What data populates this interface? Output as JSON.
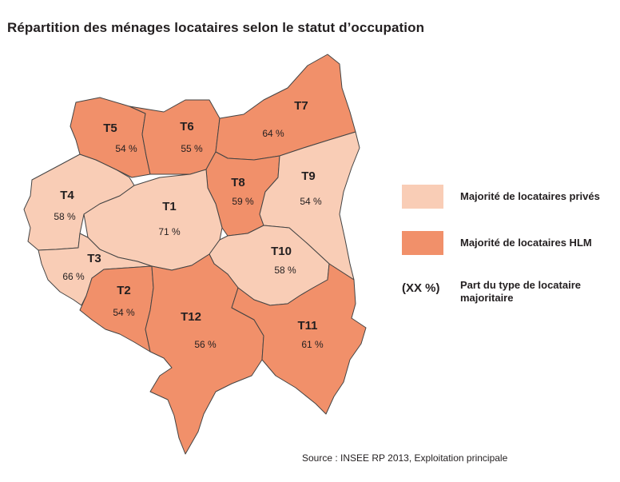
{
  "title": "Répartition des ménages locataires selon le statut d’occupation",
  "colors": {
    "prive": "#f9cdb6",
    "hlm": "#f1906a",
    "outline": "#444444"
  },
  "regions": {
    "T1": {
      "name": "T1",
      "pct": "71 %",
      "category": "prive"
    },
    "T2": {
      "name": "T2",
      "pct": "54 %",
      "category": "hlm"
    },
    "T3": {
      "name": "T3",
      "pct": "66 %",
      "category": "prive"
    },
    "T4": {
      "name": "T4",
      "pct": "58 %",
      "category": "prive"
    },
    "T5": {
      "name": "T5",
      "pct": "54 %",
      "category": "hlm"
    },
    "T6": {
      "name": "T6",
      "pct": "55 %",
      "category": "hlm"
    },
    "T7": {
      "name": "T7",
      "pct": "64 %",
      "category": "hlm"
    },
    "T8": {
      "name": "T8",
      "pct": "59 %",
      "category": "hlm"
    },
    "T9": {
      "name": "T9",
      "pct": "54 %",
      "category": "prive"
    },
    "T10": {
      "name": "T10",
      "pct": "58 %",
      "category": "prive"
    },
    "T11": {
      "name": "T11",
      "pct": "61 %",
      "category": "hlm"
    },
    "T12": {
      "name": "T12",
      "pct": "56 %",
      "category": "hlm"
    }
  },
  "legend": {
    "prive_label": "Majorité de locataires privés",
    "hlm_label": "Majorité de locataires HLM",
    "pct_key": "(XX %)",
    "pct_label": "Part du type de locataire majoritaire"
  },
  "source": "Source : INSEE RP 2013, Exploitation principale"
}
